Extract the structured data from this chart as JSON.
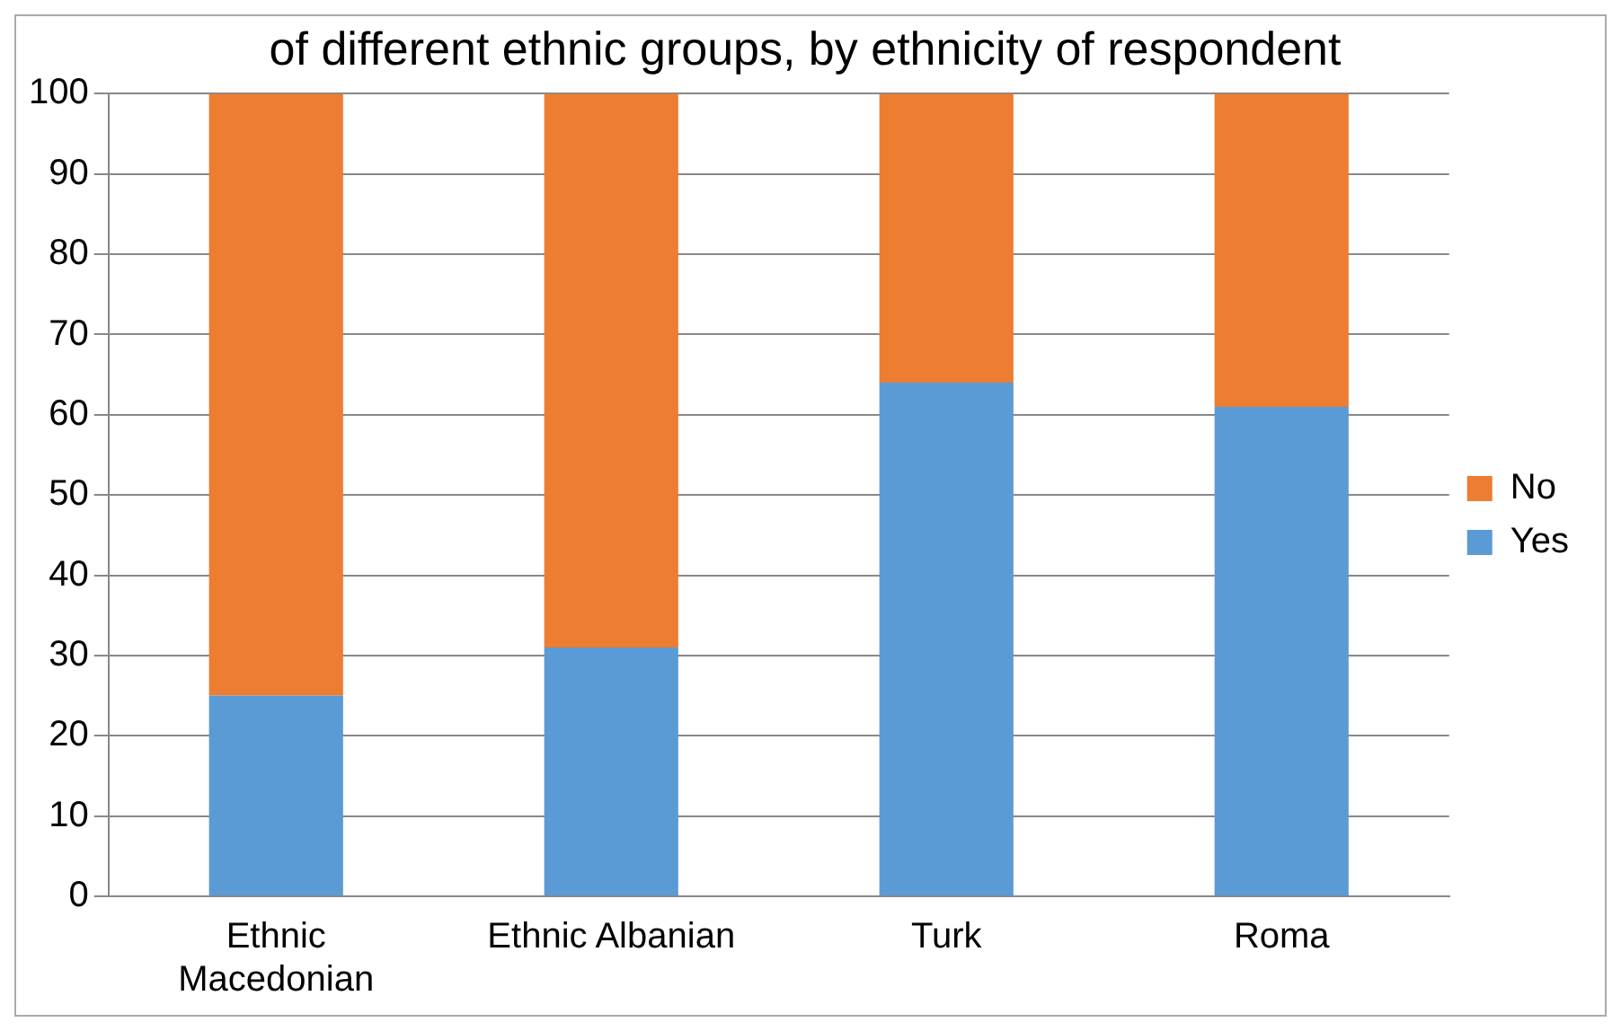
{
  "chart_data": {
    "type": "bar",
    "title": "of different ethnic groups, by ethnicity of respondent",
    "categories": [
      "Ethnic Macedonian",
      "Ethnic Albanian",
      "Turk",
      "Roma"
    ],
    "series": [
      {
        "name": "Yes",
        "color": "#5b9bd5",
        "values": [
          25,
          31,
          64,
          61
        ]
      },
      {
        "name": "No",
        "color": "#ed7d31",
        "values": [
          75,
          69,
          36,
          39
        ]
      }
    ],
    "stacked": true,
    "ylim": [
      0,
      100
    ],
    "yticks": [
      0,
      10,
      20,
      30,
      40,
      50,
      60,
      70,
      80,
      90,
      100
    ],
    "grid": "y",
    "legend": "right"
  }
}
